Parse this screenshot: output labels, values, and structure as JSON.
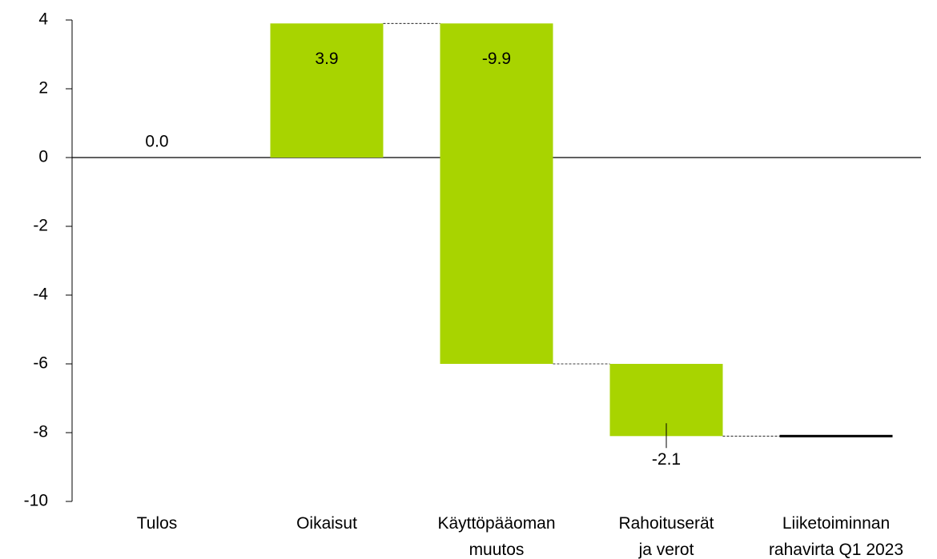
{
  "chart_data": {
    "type": "waterfall",
    "categories": [
      [
        "Tulos"
      ],
      [
        "Oikaisut"
      ],
      [
        "Käyttöpääoman",
        "muutos"
      ],
      [
        "Rahoituserät",
        "ja verot"
      ],
      [
        "Liiketoiminnan",
        "rahavirta Q1 2023"
      ]
    ],
    "values": [
      0,
      3.9,
      -9.9,
      -2.1,
      -8.1
    ],
    "value_labels": [
      "0.0",
      "3.9",
      "-9.9",
      "-2.1",
      null
    ],
    "total_index": 4,
    "color": "#a8d400",
    "total_color": "#000000",
    "ylim": [
      -10,
      4
    ],
    "yticks": [
      -10,
      -8,
      -6,
      -4,
      -2,
      0,
      2,
      4
    ]
  }
}
